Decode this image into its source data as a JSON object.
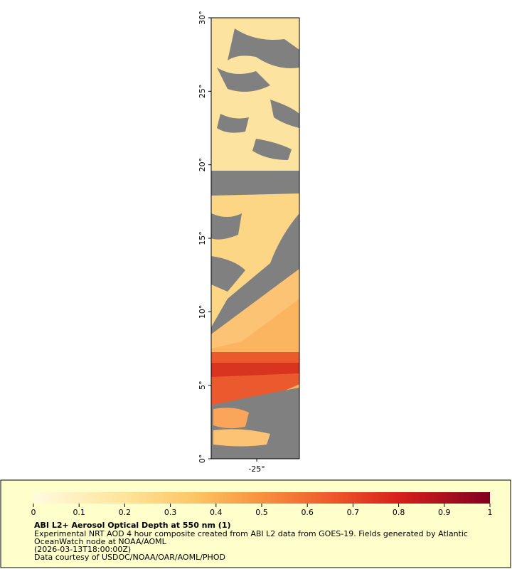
{
  "map": {
    "ylim": [
      0,
      30
    ],
    "xlim": [
      -28.1,
      -22.1
    ],
    "yticks": [
      {
        "value": 0,
        "label": "0°"
      },
      {
        "value": 5,
        "label": "5°"
      },
      {
        "value": 10,
        "label": "10°"
      },
      {
        "value": 15,
        "label": "15°"
      },
      {
        "value": 20,
        "label": "20°"
      },
      {
        "value": 25,
        "label": "25°"
      },
      {
        "value": 30,
        "label": "30°"
      }
    ],
    "xticks": [
      {
        "value": -25,
        "label": "-25°"
      }
    ]
  },
  "colorbar": {
    "lim": [
      0,
      1
    ],
    "ticks": [
      0,
      0.1,
      0.2,
      0.3,
      0.4,
      0.5,
      0.6,
      0.7,
      0.8,
      0.9,
      1
    ]
  },
  "legend": {
    "title": "ABI L2+ Aerosol Optical Depth at 550 nm (1)",
    "lines": [
      "Experimental NRT AOD 4 hour composite created from ABI L2 data from GOES-19. Fields generated by Atlantic",
      "OceanWatch node at NOAA/AOML",
      "(2026-03-13T18:00:00Z)",
      "Data courtesy of USDOC/NOAA/OAR/AOML/PHOD"
    ]
  }
}
